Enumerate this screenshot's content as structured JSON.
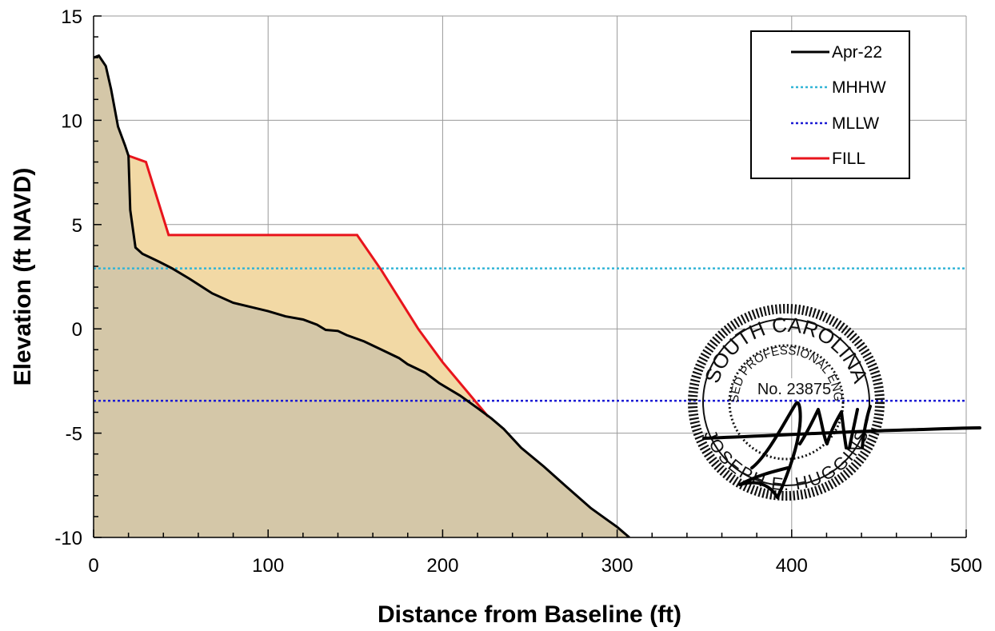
{
  "chart_data": {
    "type": "area",
    "xlabel": "Distance from Baseline (ft)",
    "ylabel": "Elevation (ft NAVD)",
    "xlim": [
      0,
      500
    ],
    "ylim": [
      -10,
      15
    ],
    "x_ticks": [
      0,
      100,
      200,
      300,
      400,
      500
    ],
    "y_ticks": [
      15,
      10,
      5,
      0,
      -5,
      -10
    ],
    "x_tick_labels": [
      "0",
      "100",
      "200",
      "300",
      "400",
      "500"
    ],
    "y_tick_labels": [
      "15",
      "10",
      "5",
      "0",
      "-5",
      "-10"
    ],
    "grid": true,
    "legend_position": "top-right",
    "colors": {
      "profile_fill": "#d4c7a8",
      "fill_area": "#f2d9a5",
      "apr22": "#000000",
      "mhhw": "#33b5d6",
      "mllw": "#1a1ad4",
      "fill_line": "#e8141c"
    },
    "series": [
      {
        "name": "Apr-22",
        "style": "solid",
        "points": [
          [
            0,
            13.0
          ],
          [
            3,
            13.1
          ],
          [
            7,
            12.6
          ],
          [
            10,
            11.5
          ],
          [
            14,
            9.7
          ],
          [
            18,
            8.8
          ],
          [
            20,
            8.3
          ],
          [
            21,
            5.7
          ],
          [
            24,
            3.9
          ],
          [
            28,
            3.6
          ],
          [
            33,
            3.4
          ],
          [
            38,
            3.2
          ],
          [
            45,
            2.9
          ],
          [
            55,
            2.4
          ],
          [
            68,
            1.7
          ],
          [
            80,
            1.25
          ],
          [
            90,
            1.05
          ],
          [
            100,
            0.85
          ],
          [
            110,
            0.6
          ],
          [
            120,
            0.45
          ],
          [
            128,
            0.2
          ],
          [
            133,
            -0.05
          ],
          [
            140,
            -0.1
          ],
          [
            145,
            -0.3
          ],
          [
            155,
            -0.6
          ],
          [
            165,
            -1.0
          ],
          [
            175,
            -1.4
          ],
          [
            180,
            -1.7
          ],
          [
            190,
            -2.1
          ],
          [
            198,
            -2.6
          ],
          [
            210,
            -3.2
          ],
          [
            220,
            -3.8
          ],
          [
            228,
            -4.3
          ],
          [
            235,
            -4.8
          ],
          [
            245,
            -5.7
          ],
          [
            258,
            -6.6
          ],
          [
            270,
            -7.5
          ],
          [
            285,
            -8.6
          ],
          [
            300,
            -9.5
          ],
          [
            307,
            -10.0
          ]
        ]
      },
      {
        "name": "MHHW",
        "style": "dotted",
        "y": 2.9
      },
      {
        "name": "MLLW",
        "style": "dotted",
        "y": -3.45
      },
      {
        "name": "FILL",
        "style": "solid",
        "points": [
          [
            20,
            8.3
          ],
          [
            30,
            8.0
          ],
          [
            43,
            4.5
          ],
          [
            151,
            4.5
          ],
          [
            165,
            2.8
          ],
          [
            186,
            0.0
          ],
          [
            200,
            -1.6
          ],
          [
            226,
            -4.2
          ]
        ]
      }
    ]
  },
  "stamp": {
    "state": "SOUTH CAROLINA",
    "title": "LICENSED PROFESSIONAL ENGINEER",
    "number": "No. 23875",
    "name": "JOSEPH E. HUGGINS"
  }
}
